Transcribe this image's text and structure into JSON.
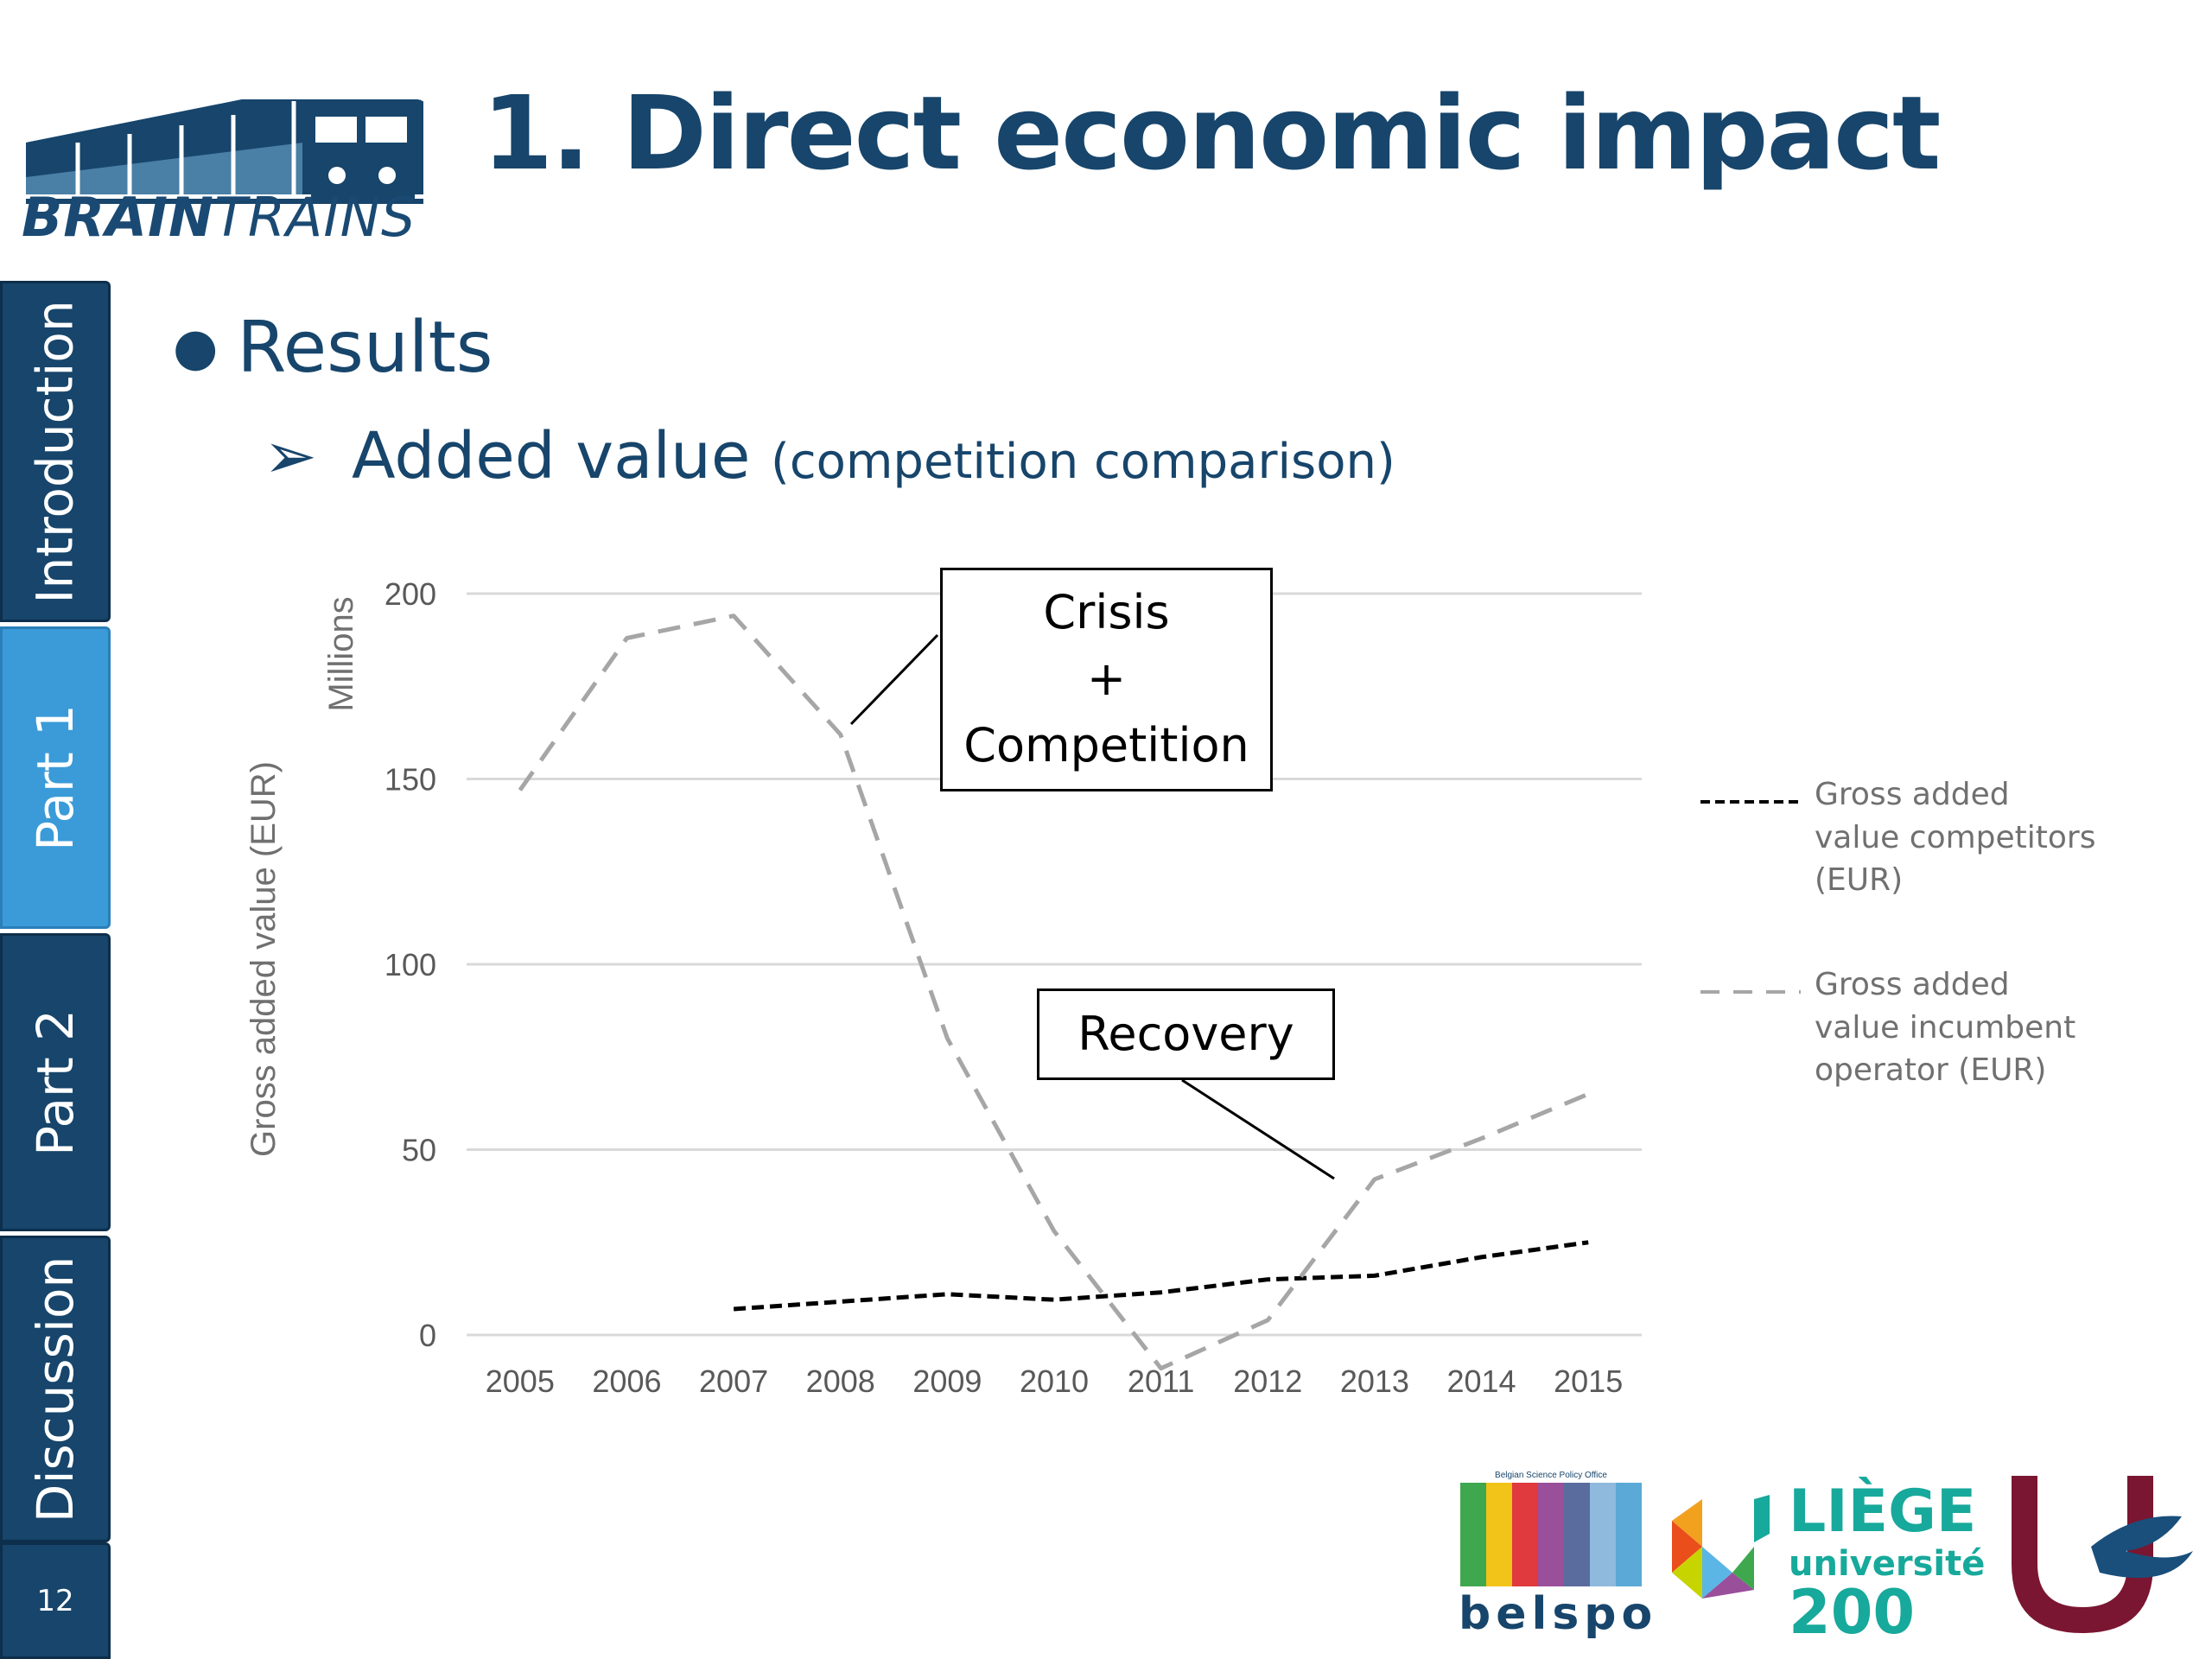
{
  "header": {
    "logo_text_bold": "BRAIN",
    "logo_text_thin": "TRAINS",
    "title": "1. Direct economic impact"
  },
  "sidebar": {
    "tabs": [
      {
        "label": "Introduction",
        "active": false
      },
      {
        "label": "Part 1",
        "active": true
      },
      {
        "label": "Part 2",
        "active": false
      },
      {
        "label": "Discussion",
        "active": false
      }
    ],
    "page_number": "12"
  },
  "content": {
    "bullet_level1": "Results",
    "bullet_level2": "Added value",
    "bullet_level2_note": "(competition comparison)"
  },
  "annotations": {
    "crisis_line1": "Crisis",
    "crisis_line2": "+",
    "crisis_line3": "Competition",
    "recovery": "Recovery"
  },
  "legend": {
    "competitors": "Gross added value competitors (EUR)",
    "incumbent": "Gross added value incumbent operator (EUR)"
  },
  "footer": {
    "belspo_caption": "Belgian Science Policy Office",
    "belspo": "belspo",
    "liege_line1": "LIÈGE",
    "liege_line2": "université",
    "liege_line3": "200"
  },
  "colors": {
    "title": "#17456b",
    "nav_bg": "#17456b",
    "nav_active": "#3a9bd8",
    "series_competitors": "#000000",
    "series_incumbent": "#a6a6a6",
    "gridline": "#d9d9d9"
  },
  "chart_data": {
    "type": "line",
    "title": "",
    "xlabel": "",
    "ylabel": "Gross added value (EUR)",
    "yunit": "Millions",
    "x": [
      "2005",
      "2006",
      "2007",
      "2008",
      "2009",
      "2010",
      "2011",
      "2012",
      "2013",
      "2014",
      "2015"
    ],
    "ylim": [
      0,
      200
    ],
    "yticks": [
      0,
      50,
      100,
      150,
      200
    ],
    "grid": true,
    "legend_position": "right",
    "series": [
      {
        "name": "Gross added value competitors (EUR)",
        "style": "dashed-black",
        "values": [
          null,
          null,
          7,
          9,
          11,
          9.5,
          11.5,
          15,
          16,
          21,
          25
        ]
      },
      {
        "name": "Gross added value incumbent operator (EUR)",
        "style": "dashed-gray",
        "values": [
          147,
          188,
          194,
          162,
          80,
          28,
          -9,
          4,
          42,
          53,
          65
        ]
      }
    ]
  }
}
